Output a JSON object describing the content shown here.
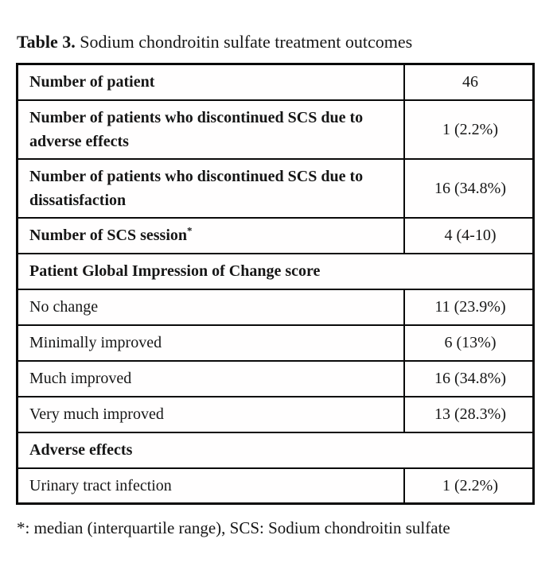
{
  "caption": {
    "number": "Table 3.",
    "text": "Sodium chondroitin sulfate treatment outcomes"
  },
  "table": {
    "rows": [
      {
        "type": "data",
        "bold": true,
        "indent": false,
        "label": "Number of patient",
        "sup": "",
        "value": "46"
      },
      {
        "type": "data",
        "bold": true,
        "indent": false,
        "label": "Number of patients who discontinued SCS due to adverse effects",
        "sup": "",
        "value": "1 (2.2%)"
      },
      {
        "type": "data",
        "bold": true,
        "indent": false,
        "label": "Number of patients who discontinued SCS due to dissatisfaction",
        "sup": "",
        "value": "16 (34.8%)"
      },
      {
        "type": "data",
        "bold": true,
        "indent": false,
        "label": "Number of SCS session",
        "sup": "*",
        "value": "4 (4-10)"
      },
      {
        "type": "section",
        "label": "Patient Global Impression of Change score"
      },
      {
        "type": "data",
        "bold": false,
        "indent": true,
        "label": "No change",
        "sup": "",
        "value": "11 (23.9%)"
      },
      {
        "type": "data",
        "bold": false,
        "indent": true,
        "label": "Minimally improved",
        "sup": "",
        "value": "6 (13%)"
      },
      {
        "type": "data",
        "bold": false,
        "indent": true,
        "label": "Much improved",
        "sup": "",
        "value": "16 (34.8%)"
      },
      {
        "type": "data",
        "bold": false,
        "indent": true,
        "label": "Very much improved",
        "sup": "",
        "value": "13 (28.3%)"
      },
      {
        "type": "section",
        "label": "Adverse effects"
      },
      {
        "type": "data",
        "bold": false,
        "indent": true,
        "label": "Urinary tract infection",
        "sup": "",
        "value": "1 (2.2%)"
      }
    ]
  },
  "footnote": "*: median (interquartile range), SCS: Sodium chondroitin sulfate",
  "colors": {
    "background": "#ffffff",
    "text": "#161616",
    "border": "#0a0a0a"
  }
}
